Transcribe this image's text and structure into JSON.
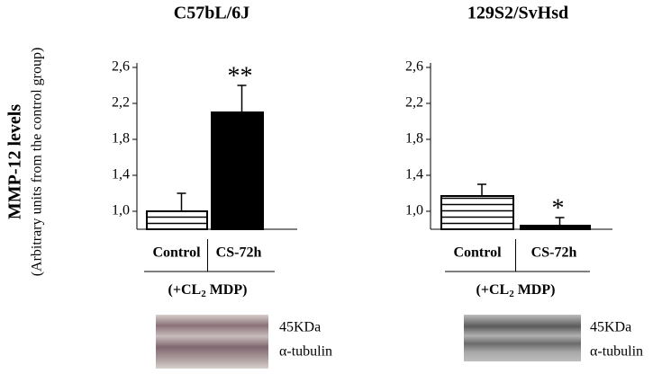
{
  "y_axis": {
    "title": "MMP-12 levels",
    "subtitle": "(Arbitrary units from the control group)"
  },
  "chart_data": [
    {
      "type": "bar",
      "title": "C57bL/6J",
      "categories": [
        "Control",
        "CS-72h"
      ],
      "values": [
        1.0,
        2.1
      ],
      "errors": [
        0.2,
        0.3
      ],
      "annotations": [
        null,
        "**"
      ],
      "colors": [
        "#ffffff",
        "#000000"
      ],
      "hatch": [
        true,
        false
      ],
      "group_label": {
        "pre": "(+CL",
        "sub": "2",
        "post": " MDP)"
      },
      "ylim": [
        0.8,
        2.65
      ],
      "yticks": [
        {
          "value": 1.0,
          "label": "1,0"
        },
        {
          "value": 1.4,
          "label": "1,4"
        },
        {
          "value": 1.8,
          "label": "1,8"
        },
        {
          "value": 2.2,
          "label": "2,2"
        },
        {
          "value": 2.6,
          "label": "2,6"
        }
      ],
      "blot": {
        "labels": [
          "45KDa",
          "α-tubulin"
        ]
      }
    },
    {
      "type": "bar",
      "title": "129S2/SvHsd",
      "categories": [
        "Control",
        "CS-72h"
      ],
      "values": [
        1.17,
        0.84
      ],
      "errors": [
        0.13,
        0.09
      ],
      "annotations": [
        null,
        "*"
      ],
      "colors": [
        "#ffffff",
        "#000000"
      ],
      "hatch": [
        true,
        false
      ],
      "group_label": {
        "pre": "(+CL",
        "sub": "2",
        "post": " MDP)"
      },
      "ylim": [
        0.8,
        2.65
      ],
      "yticks": [
        {
          "value": 1.0,
          "label": "1,0"
        },
        {
          "value": 1.4,
          "label": "1,4"
        },
        {
          "value": 1.8,
          "label": "1,8"
        },
        {
          "value": 2.2,
          "label": "2,2"
        },
        {
          "value": 2.6,
          "label": "2,6"
        }
      ],
      "blot": {
        "labels": [
          "45KDa",
          "α-tubulin"
        ]
      }
    }
  ]
}
